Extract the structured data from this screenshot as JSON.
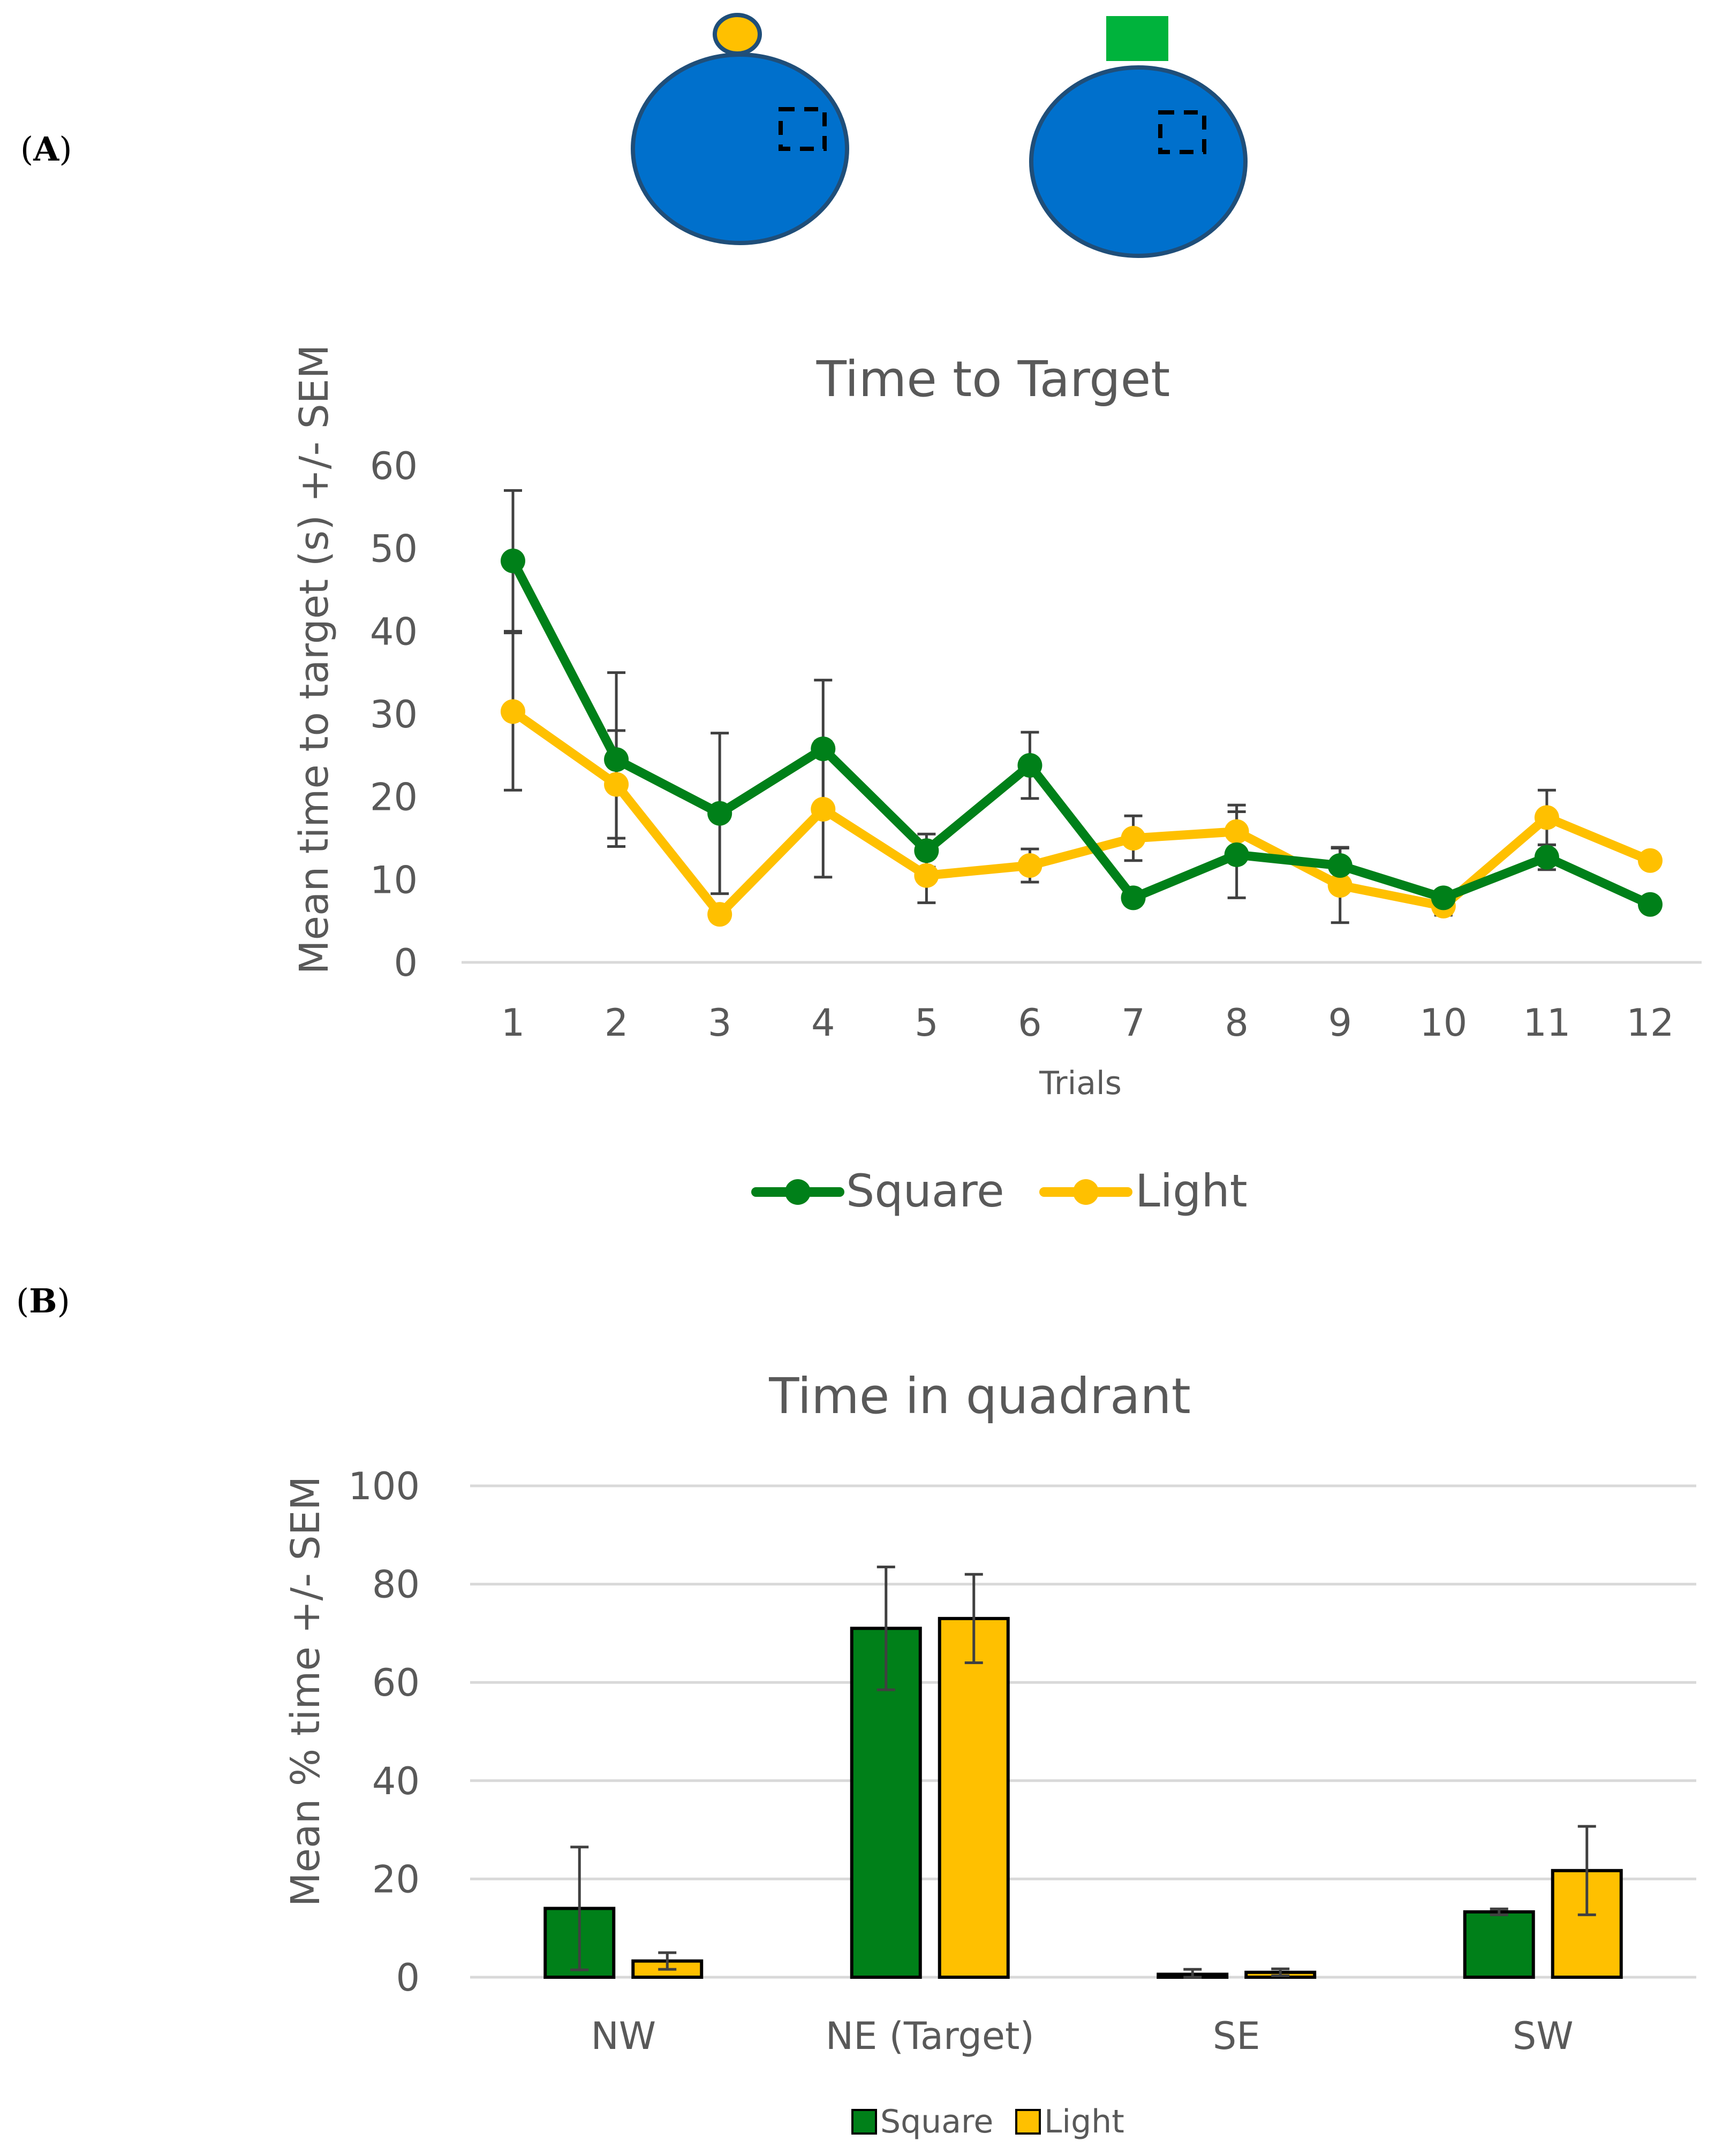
{
  "panels": {
    "a_label": "A",
    "b_label": "B"
  },
  "colors": {
    "square": "#008019",
    "light": "#FFC000",
    "pool": "#0070CC",
    "square_cue": "#00B33C",
    "axis": "#D9D9D9",
    "error_bar": "#404040"
  },
  "chart_data": [
    {
      "type": "line",
      "title": "Time to Target",
      "xlabel": "Trials",
      "ylabel": "Mean time to target (s) +/- SEM",
      "ylim": [
        0,
        60
      ],
      "yticks": [
        "0",
        "10",
        "20",
        "30",
        "40",
        "50",
        "60"
      ],
      "categories": [
        "1",
        "2",
        "3",
        "4",
        "5",
        "6",
        "7",
        "8",
        "9",
        "10",
        "11",
        "12"
      ],
      "legend_position": "bottom",
      "series": [
        {
          "name": "Square",
          "color": "#008019",
          "values": [
            48.5,
            24.5,
            18,
            25.8,
            13.5,
            23.8,
            7.8,
            13,
            11.7,
            7.8,
            12.7,
            7
          ],
          "sem": [
            8.5,
            10.5,
            9.7,
            8.3,
            2,
            4,
            0.6,
            5.2,
            2.2,
            0.5,
            1.5,
            0.4
          ]
        },
        {
          "name": "Light",
          "color": "#FFC000",
          "values": [
            30.3,
            21.5,
            5.8,
            18.5,
            10.5,
            11.7,
            15,
            15.8,
            9.3,
            6.8,
            17.5,
            12.3
          ],
          "sem": [
            9.5,
            6.5,
            0.3,
            8.2,
            3.3,
            2,
            2.7,
            3.2,
            4.5,
            1.1,
            3.3,
            0.5
          ]
        }
      ]
    },
    {
      "type": "bar",
      "title": "Time in quadrant",
      "ylabel": "Mean % time +/- SEM",
      "ylim": [
        0,
        100
      ],
      "yticks": [
        "0",
        "20",
        "40",
        "60",
        "80",
        "100"
      ],
      "grid": true,
      "categories": [
        "NW",
        "NE (Target)",
        "SE",
        "SW"
      ],
      "legend_position": "bottom",
      "series": [
        {
          "name": "Square",
          "color": "#008019",
          "values": [
            14,
            71,
            0.6,
            13.3
          ],
          "sem": [
            12.5,
            12.5,
            1,
            0.6
          ]
        },
        {
          "name": "Light",
          "color": "#FFC000",
          "values": [
            3.3,
            73,
            1,
            21.7
          ],
          "sem": [
            1.7,
            9,
            0.7,
            9
          ]
        }
      ]
    }
  ]
}
